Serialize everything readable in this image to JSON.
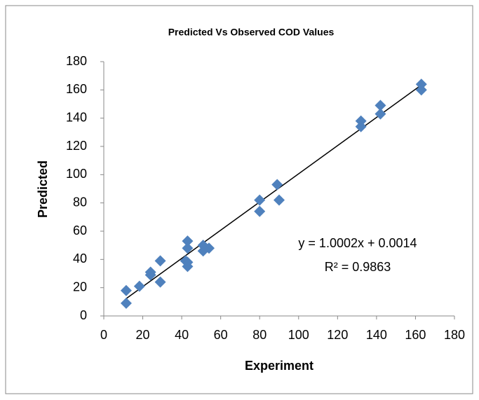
{
  "chart_data": {
    "type": "scatter",
    "title": "Predicted Vs Observed COD Values",
    "x_label": "Experiment",
    "y_label": "Predicted",
    "series": [
      {
        "name": "Predicted",
        "color": "#4f81bd",
        "x": [
          11.5,
          11.5,
          18.3,
          24,
          24,
          29,
          29,
          43,
          43,
          42,
          43,
          43,
          51,
          51,
          54,
          80,
          80,
          89,
          90,
          132,
          132,
          142,
          142,
          163,
          163
        ],
        "values": [
          9,
          18,
          21,
          31,
          29,
          39,
          24,
          53,
          48,
          39,
          38,
          35,
          50,
          46,
          48,
          82,
          74,
          93,
          82,
          138,
          134,
          149,
          143,
          164,
          160
        ]
      }
    ],
    "xlim": [
      0,
      180
    ],
    "xticks": [
      0,
      20,
      40,
      60,
      80,
      100,
      120,
      140,
      160,
      180
    ],
    "ylim": [
      0,
      180
    ],
    "yticks": [
      0,
      20,
      40,
      60,
      80,
      100,
      120,
      140,
      160,
      180
    ],
    "trendline_equation": "y = 1.0002x + 0.0014",
    "trendline_r2": "R² = 0.9863"
  }
}
